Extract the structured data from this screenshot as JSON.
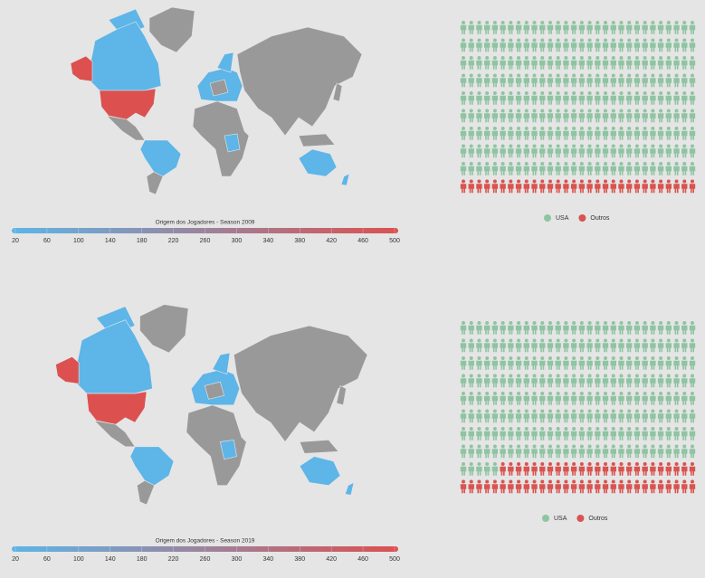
{
  "chart_data": [
    {
      "type": "choropleth",
      "title": "Origem dos Jogadores - Season 2009",
      "colorbar": {
        "range": [
          20,
          500
        ],
        "ticks": [
          20,
          60,
          100,
          140,
          180,
          220,
          260,
          300,
          340,
          380,
          420,
          460,
          500
        ],
        "colors": [
          "#5db5e8",
          "#dc5050"
        ]
      }
    },
    {
      "type": "pictogram",
      "columns": 30,
      "series": [
        {
          "name": "USA",
          "color": "#8fc4a2",
          "value": 270
        },
        {
          "name": "Outros",
          "color": "#d9534f",
          "value": 30
        }
      ]
    },
    {
      "type": "choropleth",
      "title": "Origem dos Jogadores - Season 2019",
      "colorbar": {
        "range": [
          20,
          500
        ],
        "ticks": [
          20,
          60,
          100,
          140,
          180,
          220,
          260,
          300,
          340,
          380,
          420,
          460,
          500
        ],
        "colors": [
          "#5db5e8",
          "#dc5050"
        ]
      }
    },
    {
      "type": "pictogram",
      "columns": 30,
      "series": [
        {
          "name": "USA",
          "color": "#8fc4a2",
          "value": 245
        },
        {
          "name": "Outros",
          "color": "#d9534f",
          "value": 55
        }
      ]
    }
  ]
}
